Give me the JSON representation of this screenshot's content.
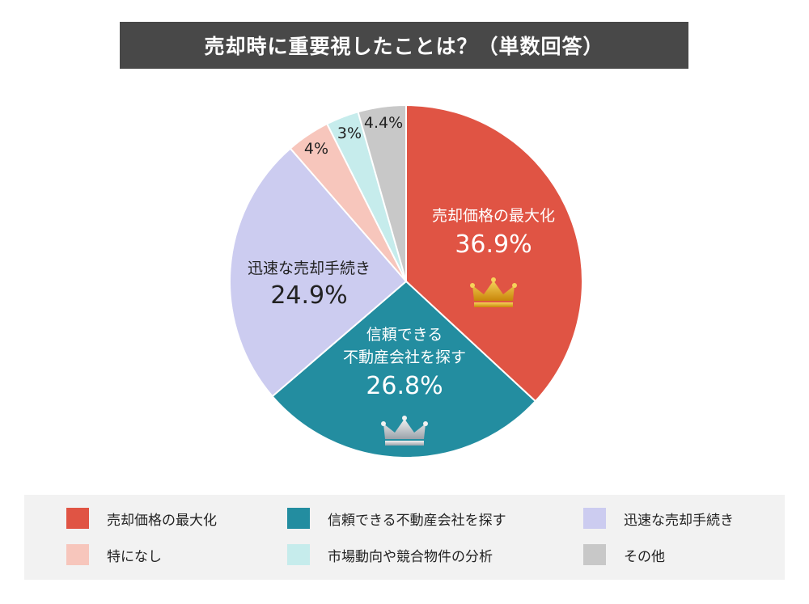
{
  "chart_data": {
    "type": "pie",
    "title": "売却時に重要視したことは？（単数回答）",
    "slices": [
      {
        "label": "売却価格の最大化",
        "value": 36.9,
        "value_label": "36.9%",
        "color": "#e05444",
        "inside_label_lines": [
          "売却価格の最大化"
        ],
        "label_color": "#ffffff",
        "crown": "gold-crown-icon"
      },
      {
        "label": "信頼できる不動産会社を探す",
        "value": 26.8,
        "value_label": "26.8%",
        "color": "#238da0",
        "inside_label_lines": [
          "信頼できる",
          "不動産会社を探す"
        ],
        "label_color": "#ffffff",
        "crown": "silver-crown-icon"
      },
      {
        "label": "迅速な売却手続き",
        "value": 24.9,
        "value_label": "24.9%",
        "color": "#ccccf0",
        "inside_label_lines": [
          "迅速な売却手続き"
        ],
        "label_color": "#222222",
        "crown": ""
      },
      {
        "label": "特になし",
        "value": 4,
        "value_label": "4%",
        "color": "#f7c6bc",
        "inside_label_lines": [],
        "label_color": "#222222",
        "crown": ""
      },
      {
        "label": "市場動向や競合物件の分析",
        "value": 3,
        "value_label": "3%",
        "color": "#c6ecec",
        "inside_label_lines": [],
        "label_color": "#222222",
        "crown": ""
      },
      {
        "label": "その他",
        "value": 4.4,
        "value_label": "4.4%",
        "color": "#c8c8c8",
        "inside_label_lines": [],
        "label_color": "#222222",
        "crown": ""
      }
    ],
    "legend": {
      "placement": "bottom",
      "order": [
        "売却価格の最大化",
        "信頼できる不動産会社を探す",
        "迅速な売却手続き",
        "特になし",
        "市場動向や競合物件の分析",
        "その他"
      ]
    }
  }
}
